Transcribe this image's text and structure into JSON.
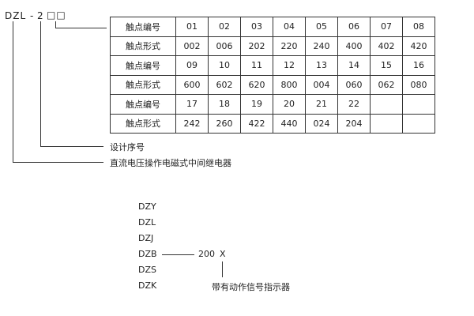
{
  "model_code": {
    "prefix": "DZL",
    "dash": "-",
    "digit": "2",
    "boxes": "□□"
  },
  "table": {
    "rows": [
      {
        "label": "触点编号",
        "cells": [
          "01",
          "02",
          "03",
          "04",
          "05",
          "06",
          "07",
          "08"
        ]
      },
      {
        "label": "触点形式",
        "cells": [
          "002",
          "006",
          "202",
          "220",
          "240",
          "400",
          "402",
          "420"
        ]
      },
      {
        "label": "触点编号",
        "cells": [
          "09",
          "10",
          "11",
          "12",
          "13",
          "14",
          "15",
          "16"
        ]
      },
      {
        "label": "触点形式",
        "cells": [
          "600",
          "602",
          "620",
          "800",
          "004",
          "060",
          "062",
          "080"
        ]
      },
      {
        "label": "触点编号",
        "cells": [
          "17",
          "18",
          "19",
          "20",
          "21",
          "22",
          "",
          ""
        ]
      },
      {
        "label": "触点形式",
        "cells": [
          "242",
          "260",
          "422",
          "440",
          "024",
          "204",
          "",
          ""
        ]
      }
    ]
  },
  "design_serial_label": "设计序号",
  "relay_type_label": "直流电压操作电磁式中间继电器",
  "series": [
    "DZY",
    "DZL",
    "DZJ",
    "DZB",
    "DZS",
    "DZK"
  ],
  "suffix_code": "200",
  "suffix_letter": "X",
  "indicator_label": "带有动作信号指示器"
}
